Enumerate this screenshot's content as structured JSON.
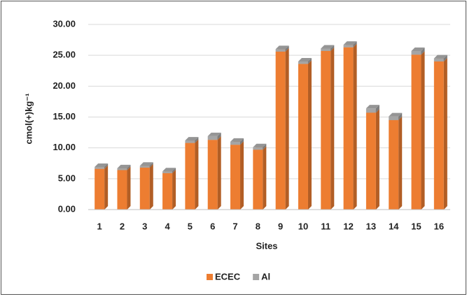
{
  "chart_data": {
    "type": "bar3d_stacked",
    "y_label": "cmol(+)kg⁻¹",
    "x_label": "Sites",
    "categories": [
      "1",
      "2",
      "3",
      "4",
      "5",
      "6",
      "7",
      "8",
      "9",
      "10",
      "11",
      "12",
      "13",
      "14",
      "15",
      "16"
    ],
    "series": [
      {
        "name": "ECEC",
        "color": "#ed7d31",
        "values": [
          6.6,
          6.4,
          6.8,
          5.9,
          10.8,
          11.3,
          10.5,
          9.7,
          25.6,
          23.6,
          25.7,
          26.3,
          15.7,
          14.5,
          25.1,
          24.0
        ]
      },
      {
        "name": "Al",
        "color": "#a5a5a5",
        "values": [
          0.3,
          0.3,
          0.3,
          0.3,
          0.4,
          0.6,
          0.5,
          0.4,
          0.4,
          0.4,
          0.4,
          0.4,
          0.7,
          0.6,
          0.6,
          0.5
        ]
      }
    ],
    "ylim": [
      0,
      30
    ],
    "yticks": [
      {
        "value": 0,
        "label": "0.00"
      },
      {
        "value": 5,
        "label": "5.00"
      },
      {
        "value": 10,
        "label": "10.00"
      },
      {
        "value": 15,
        "label": "15.00"
      },
      {
        "value": 20,
        "label": "20.00"
      },
      {
        "value": 25,
        "label": "25.00"
      },
      {
        "value": 30,
        "label": "30.00"
      }
    ],
    "grid": true,
    "legend": "bottom"
  }
}
